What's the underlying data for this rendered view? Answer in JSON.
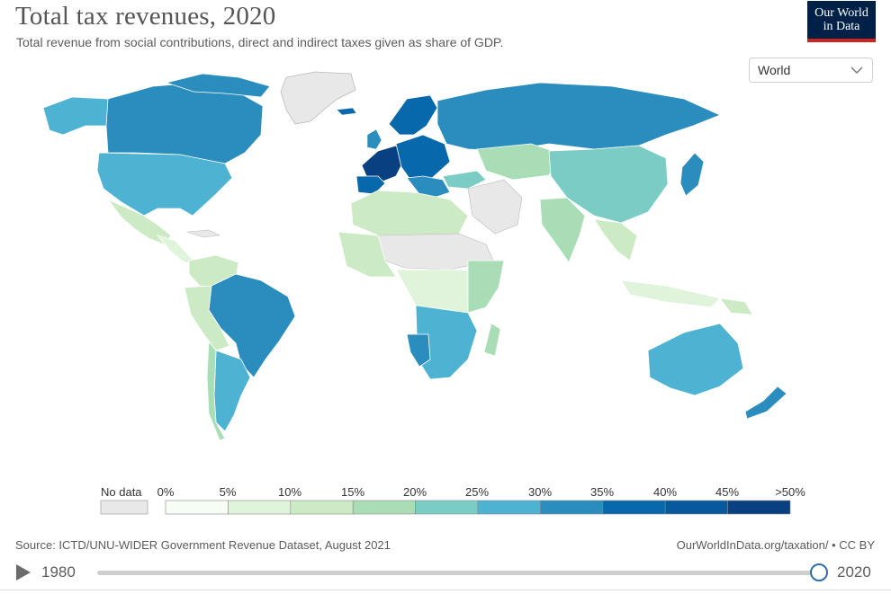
{
  "header": {
    "title": "Total tax revenues, 2020",
    "subtitle": "Total revenue from social contributions, direct and indirect taxes given as share of GDP."
  },
  "logo": {
    "line1": "Our World",
    "line2": "in Data"
  },
  "region_select": {
    "value": "World"
  },
  "legend": {
    "no_data_label": "No data",
    "ticks": [
      "0%",
      "5%",
      "10%",
      "15%",
      "20%",
      "25%",
      "30%",
      "35%",
      "40%",
      "45%",
      ">50%"
    ],
    "colors": [
      "#f7fcf5",
      "#e0f3db",
      "#ccebc5",
      "#a8ddb5",
      "#7bccc4",
      "#4eb3d3",
      "#2b8cbe",
      "#0868ac",
      "#08589e",
      "#084081"
    ],
    "no_data_color": "#e8e8e8"
  },
  "footer": {
    "source": "Source: ICTD/UNU-WIDER Government Revenue Dataset, August 2021",
    "credit": "OurWorldInData.org/taxation/ • CC BY"
  },
  "timeline": {
    "start_year": "1980",
    "end_year": "2020"
  }
}
